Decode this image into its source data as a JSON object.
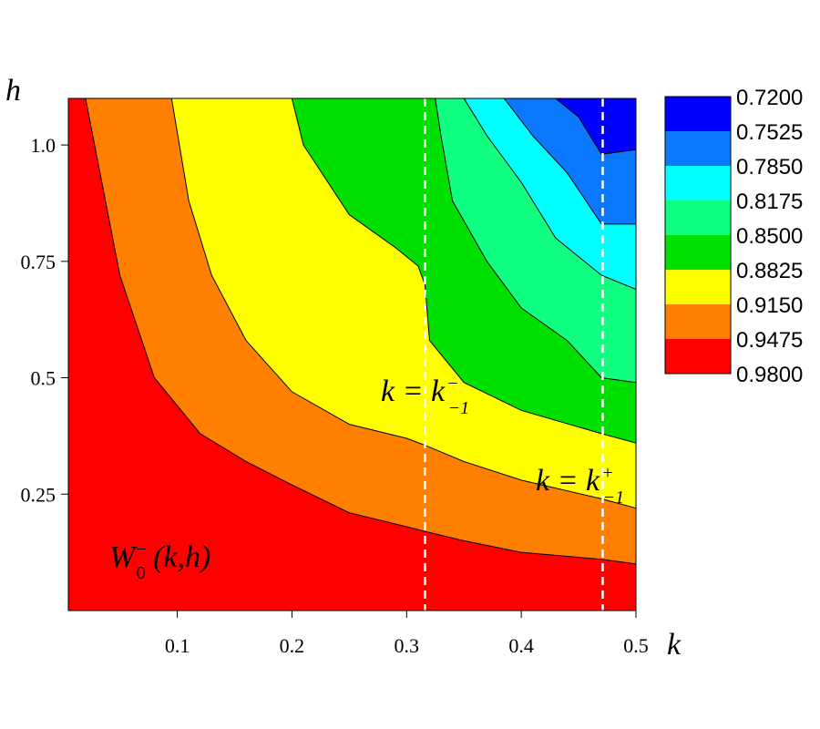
{
  "chart_data": {
    "type": "heatmap",
    "subtype": "filled-contour",
    "xlabel": "k",
    "ylabel": "h",
    "xlim": [
      0.005,
      0.5
    ],
    "ylim": [
      0.0,
      1.1
    ],
    "x_ticks": [
      {
        "value": 0.1,
        "label": "0.1"
      },
      {
        "value": 0.2,
        "label": "0.2"
      },
      {
        "value": 0.3,
        "label": "0.3"
      },
      {
        "value": 0.4,
        "label": "0.4"
      },
      {
        "value": 0.5,
        "label": "0.5"
      }
    ],
    "y_ticks": [
      {
        "value": 0.25,
        "label": "0.25"
      },
      {
        "value": 0.5,
        "label": "0.5"
      },
      {
        "value": 0.75,
        "label": "0.75"
      },
      {
        "value": 1.0,
        "label": "1.0"
      }
    ],
    "grid": false,
    "colorbar": {
      "placement": "right",
      "labels": [
        "0.7200",
        "0.7525",
        "0.7850",
        "0.8175",
        "0.8500",
        "0.8825",
        "0.9150",
        "0.9475",
        "0.9800"
      ],
      "colors": [
        "#0000ff",
        "#0a78ff",
        "#00ffff",
        "#10ff80",
        "#00e000",
        "#ffff00",
        "#ff8000",
        "#ff0000"
      ]
    },
    "contour_boundaries": [
      {
        "level": 0.9475,
        "points": [
          [
            0.02,
            1.1
          ],
          [
            0.05,
            0.72
          ],
          [
            0.08,
            0.5
          ],
          [
            0.12,
            0.38
          ],
          [
            0.16,
            0.32
          ],
          [
            0.2,
            0.27
          ],
          [
            0.25,
            0.21
          ],
          [
            0.3,
            0.18
          ],
          [
            0.316,
            0.17
          ],
          [
            0.35,
            0.15
          ],
          [
            0.4,
            0.125
          ],
          [
            0.47,
            0.11
          ],
          [
            0.5,
            0.1
          ]
        ]
      },
      {
        "level": 0.915,
        "points": [
          [
            0.095,
            1.1
          ],
          [
            0.11,
            0.88
          ],
          [
            0.13,
            0.72
          ],
          [
            0.16,
            0.58
          ],
          [
            0.2,
            0.47
          ],
          [
            0.25,
            0.4
          ],
          [
            0.3,
            0.37
          ],
          [
            0.316,
            0.355
          ],
          [
            0.35,
            0.32
          ],
          [
            0.4,
            0.28
          ],
          [
            0.47,
            0.24
          ],
          [
            0.5,
            0.22
          ]
        ]
      },
      {
        "level": 0.8825,
        "points": [
          [
            0.2,
            1.1
          ],
          [
            0.21,
            1.0
          ],
          [
            0.25,
            0.85
          ],
          [
            0.29,
            0.78
          ],
          [
            0.31,
            0.74
          ],
          [
            0.316,
            0.7
          ],
          [
            0.32,
            0.58
          ],
          [
            0.35,
            0.49
          ],
          [
            0.4,
            0.43
          ],
          [
            0.47,
            0.38
          ],
          [
            0.5,
            0.36
          ]
        ]
      },
      {
        "level": 0.85,
        "points": [
          [
            0.325,
            1.1
          ],
          [
            0.33,
            1.02
          ],
          [
            0.34,
            0.88
          ],
          [
            0.37,
            0.75
          ],
          [
            0.4,
            0.65
          ],
          [
            0.44,
            0.58
          ],
          [
            0.47,
            0.5
          ],
          [
            0.5,
            0.49
          ]
        ]
      },
      {
        "level": 0.8175,
        "points": [
          [
            0.35,
            1.1
          ],
          [
            0.37,
            1.02
          ],
          [
            0.4,
            0.92
          ],
          [
            0.43,
            0.8
          ],
          [
            0.47,
            0.72
          ],
          [
            0.5,
            0.69
          ]
        ]
      },
      {
        "level": 0.785,
        "points": [
          [
            0.385,
            1.1
          ],
          [
            0.41,
            1.02
          ],
          [
            0.44,
            0.94
          ],
          [
            0.47,
            0.83
          ],
          [
            0.5,
            0.83
          ]
        ]
      },
      {
        "level": 0.7525,
        "points": [
          [
            0.43,
            1.1
          ],
          [
            0.45,
            1.06
          ],
          [
            0.47,
            0.98
          ],
          [
            0.5,
            0.99
          ]
        ]
      }
    ],
    "reference_lines": [
      {
        "axis": "x",
        "value": 0.316,
        "style": "dashed",
        "color": "#ffffff"
      },
      {
        "axis": "x",
        "value": 0.471,
        "style": "dashed",
        "color": "#ffffff"
      }
    ],
    "annotations": [
      {
        "id": "kminus",
        "base": "k = k",
        "sup": "−",
        "sub": "−1"
      },
      {
        "id": "kplus",
        "base": "k = k",
        "sup": "+",
        "sub": "−1"
      },
      {
        "id": "w0",
        "base": "W",
        "sup": "−",
        "sub": "0",
        "suffix": " (k,h)"
      }
    ]
  }
}
